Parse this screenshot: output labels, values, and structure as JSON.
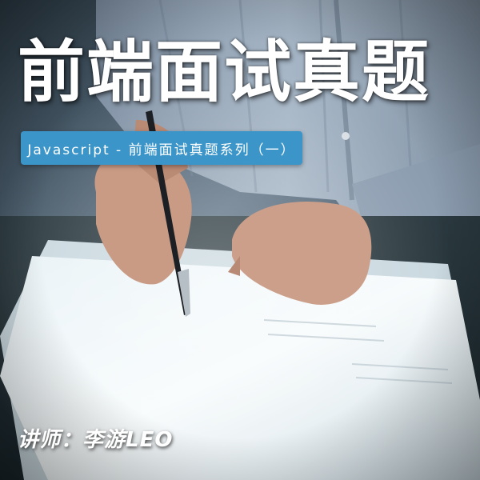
{
  "cover": {
    "title": "前端面试真题",
    "subtitle": "Javascript - 前端面试真题系列（一）",
    "lecturer": "讲师：李游LEO"
  },
  "colors": {
    "banner": "#3b95c9",
    "text": "#ffffff"
  }
}
